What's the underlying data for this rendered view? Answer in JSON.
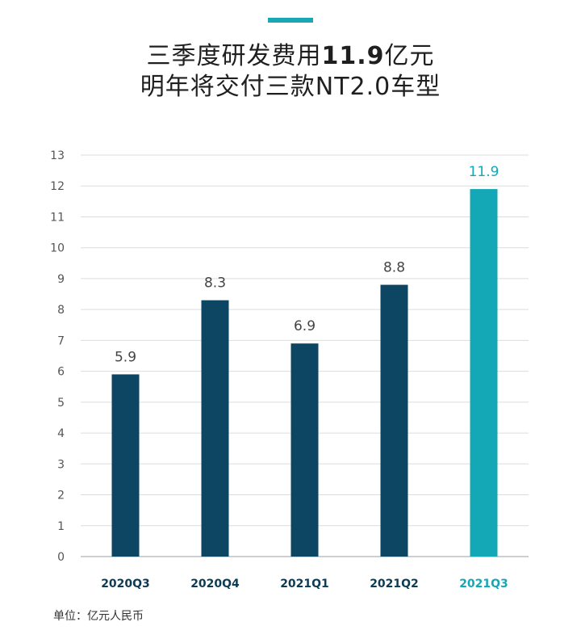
{
  "header": {
    "title_line1_prefix": "三季度研发费用",
    "title_line1_number": "11.9",
    "title_line1_suffix": "亿元",
    "title_line2": "明年将交付三款NT2.0车型"
  },
  "unit_label": "单位：亿元人民币",
  "colors": {
    "accent": "#1aa7b4",
    "bar_primary": "#0c4662",
    "bar_highlight": "#14a8b6",
    "grid": "#d9dde0"
  },
  "chart_data": {
    "type": "bar",
    "categories": [
      "2020Q3",
      "2020Q4",
      "2021Q1",
      "2021Q2",
      "2021Q3"
    ],
    "values": [
      5.9,
      8.3,
      6.9,
      8.8,
      11.9
    ],
    "value_labels": [
      "5.9",
      "8.3",
      "6.9",
      "8.8",
      "11.9"
    ],
    "highlight_index": 4,
    "yticks": [
      0,
      1,
      2,
      3,
      4,
      5,
      6,
      7,
      8,
      9,
      10,
      11,
      12,
      13
    ],
    "ylim": [
      0,
      13
    ],
    "grid": true,
    "legend": "none"
  }
}
